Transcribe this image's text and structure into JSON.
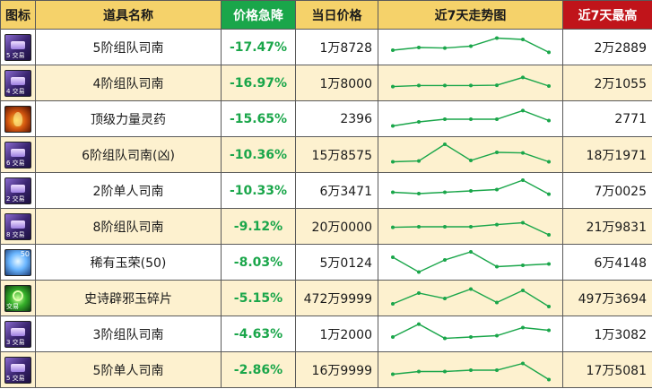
{
  "header": {
    "icon": "图标",
    "name": "道具名称",
    "drop": "价格急降",
    "price": "当日价格",
    "trend": "近7天走势图",
    "max": "近7天最高"
  },
  "colors": {
    "header_bg": "#f5d26a",
    "drop_header_bg": "#1aa64a",
    "max_header_bg": "#c0141a",
    "drop_text": "#1aa64a",
    "sparkline": "#1aa64a",
    "row_alt_bg": "#fdf1cf"
  },
  "rows": [
    {
      "icon": "book-icon",
      "icon_badge": "5 交易",
      "icon_num": "",
      "name": "5阶组队司南",
      "drop": "-17.47%",
      "price": "1万8728",
      "max": "2万2889",
      "trend": [
        0.6,
        0.5,
        0.52,
        0.45,
        0.15,
        0.2,
        0.68
      ]
    },
    {
      "icon": "book-icon",
      "icon_badge": "4 交易",
      "icon_num": "",
      "name": "4阶组队司南",
      "drop": "-16.97%",
      "price": "1万8000",
      "max": "2万1055",
      "trend": [
        0.62,
        0.58,
        0.58,
        0.58,
        0.57,
        0.28,
        0.6
      ]
    },
    {
      "icon": "potion-icon",
      "icon_badge": "",
      "icon_num": "",
      "name": "顶级力量灵药",
      "drop": "-15.65%",
      "price": "2396",
      "max": "2771",
      "trend": [
        0.75,
        0.6,
        0.5,
        0.5,
        0.5,
        0.18,
        0.55
      ]
    },
    {
      "icon": "book-icon",
      "icon_badge": "6 交易",
      "icon_num": "",
      "name": "6阶组队司南(凶)",
      "drop": "-10.36%",
      "price": "15万8575",
      "max": "18万1971",
      "trend": [
        0.75,
        0.72,
        0.1,
        0.7,
        0.4,
        0.42,
        0.75
      ]
    },
    {
      "icon": "book-icon",
      "icon_badge": "2 交易",
      "icon_num": "",
      "name": "2阶单人司南",
      "drop": "-10.33%",
      "price": "6万3471",
      "max": "7万0025",
      "trend": [
        0.55,
        0.6,
        0.55,
        0.5,
        0.45,
        0.1,
        0.62
      ]
    },
    {
      "icon": "book-icon",
      "icon_badge": "8 交易",
      "icon_num": "",
      "name": "8阶组队司南",
      "drop": "-9.12%",
      "price": "20万0000",
      "max": "21万9831",
      "trend": [
        0.52,
        0.5,
        0.5,
        0.5,
        0.42,
        0.35,
        0.8
      ]
    },
    {
      "icon": "gem-icon",
      "icon_badge": "",
      "icon_num": "50",
      "name": "稀有玉荣(50)",
      "drop": "-8.03%",
      "price": "5万0124",
      "max": "6万4148",
      "trend": [
        0.3,
        0.85,
        0.4,
        0.1,
        0.65,
        0.6,
        0.55
      ]
    },
    {
      "icon": "jade-icon",
      "icon_badge": "交易",
      "icon_num": "",
      "name": "史诗辟邪玉碎片",
      "drop": "-5.15%",
      "price": "472万9999",
      "max": "497万3694",
      "trend": [
        0.7,
        0.3,
        0.5,
        0.15,
        0.65,
        0.2,
        0.8
      ]
    },
    {
      "icon": "book-icon",
      "icon_badge": "3 交易",
      "icon_num": "",
      "name": "3阶组队司南",
      "drop": "-4.63%",
      "price": "1万2000",
      "max": "1万3082",
      "trend": [
        0.6,
        0.12,
        0.65,
        0.6,
        0.55,
        0.25,
        0.35
      ]
    },
    {
      "icon": "book-icon",
      "icon_badge": "5 交易",
      "icon_num": "",
      "name": "5阶单人司南",
      "drop": "-2.86%",
      "price": "16万9999",
      "max": "17万5081",
      "trend": [
        0.65,
        0.55,
        0.55,
        0.5,
        0.5,
        0.25,
        0.85
      ]
    }
  ]
}
